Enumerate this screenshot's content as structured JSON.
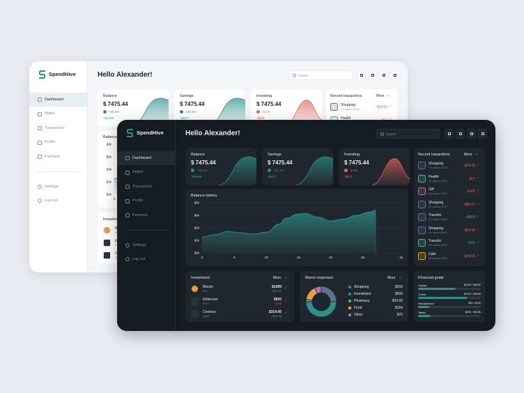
{
  "brand": "SpendHive",
  "nav": [
    "Dashboard",
    "Wallet",
    "Transaction",
    "Profile",
    "Payment"
  ],
  "nav_bottom": [
    "Settings",
    "Log out"
  ],
  "greeting": "Hello Alexander!",
  "search": "Search",
  "cards": [
    {
      "title": "Balance",
      "amount": "$ 7475.44",
      "change": "+25.4%",
      "delta": "+$1495"
    },
    {
      "title": "Savings",
      "amount": "$ 7475.44",
      "change": "+30.4%",
      "delta": "+$217"
    },
    {
      "title": "Investing",
      "amount": "$ 7475.44",
      "change": "-5.4%",
      "delta": "-$504"
    }
  ],
  "recent": {
    "title": "Recent trasactions",
    "more": "More",
    "items": [
      {
        "name": "Shopping",
        "date": "27 march 2022",
        "amount": "-$24.56"
      },
      {
        "name": "Health",
        "date": "26 march 2022",
        "amount": "-$17"
      },
      {
        "name": "Gift",
        "date": "26 march 2022",
        "amount": "-$100"
      },
      {
        "name": "Shopping",
        "date": "27 march 2022",
        "amount": "-$84.27"
      },
      {
        "name": "Transfer",
        "date": "27 march 2022",
        "amount": "+$500"
      },
      {
        "name": "Shopping",
        "date": "26 march 2022",
        "amount": "-$24.56"
      },
      {
        "name": "Transfer",
        "date": "26 march 2022",
        "amount": "+$32"
      },
      {
        "name": "Cafe",
        "date": "20 march 2022",
        "amount": "-$24.56"
      }
    ]
  },
  "balance_history": {
    "type": "area",
    "title": "Balance history",
    "color": "#2f8f8a",
    "x": [
      0,
      2,
      4,
      6,
      8,
      10,
      12,
      13,
      15,
      16,
      18,
      20,
      22,
      24,
      26,
      27
    ],
    "values": [
      2500,
      2900,
      3400,
      3200,
      3000,
      3300,
      4600,
      5500,
      6200,
      6300,
      5700,
      5100,
      5400,
      6000,
      6500,
      6800
    ],
    "xlim": [
      0,
      31
    ],
    "xticks": [
      0,
      5,
      10,
      15,
      20,
      25,
      31
    ],
    "ylim": [
      0,
      8000
    ],
    "yticks": [
      {
        "value": 0,
        "label": "$0k"
      },
      {
        "value": 2000,
        "label": "$2k"
      },
      {
        "value": 4000,
        "label": "$4k"
      },
      {
        "value": 6000,
        "label": "$6k"
      },
      {
        "value": 8000,
        "label": "$8k"
      }
    ]
  },
  "investment": {
    "title": "Investment",
    "more": "More",
    "items": [
      {
        "name": "Bitcoin",
        "ticker": "BTC",
        "amount": "$1495",
        "change": "+$44.50"
      },
      {
        "name": "Ethereum",
        "ticker": "ETH",
        "amount": "$500",
        "change": "-$128"
      },
      {
        "name": "Cosmos",
        "ticker": "Atom",
        "amount": "$314.45",
        "change": "+$14.45"
      }
    ]
  },
  "expenses": {
    "type": "donut",
    "title": "March expenses",
    "more": "More",
    "categories": [
      "Shopping",
      "Investment",
      "Pharmacy",
      "Food",
      "Other"
    ],
    "values": [
      250,
      500,
      24.99,
      154,
      70
    ],
    "value_labels": [
      "$250",
      "$500",
      "$24.99",
      "$154",
      "$70"
    ],
    "colors": [
      "#5b7391",
      "#2f8f8a",
      "#4caf6a",
      "#e3a23f",
      "#b36bbd"
    ]
  },
  "goals": {
    "title": "Financial goals",
    "items": [
      {
        "name": "Laptop",
        "current": 1200,
        "target": 2000,
        "label": "$1200 / $2000"
      },
      {
        "name": "Travel",
        "current": 3120,
        "target": 4000,
        "label": "$3120 / $4000"
      },
      {
        "name": "Headphones",
        "current": 35,
        "target": 200,
        "label": "$35 / $200"
      },
      {
        "name": "Tablet",
        "current": 200,
        "target": 1000,
        "label": "$200 / $1000"
      }
    ]
  }
}
